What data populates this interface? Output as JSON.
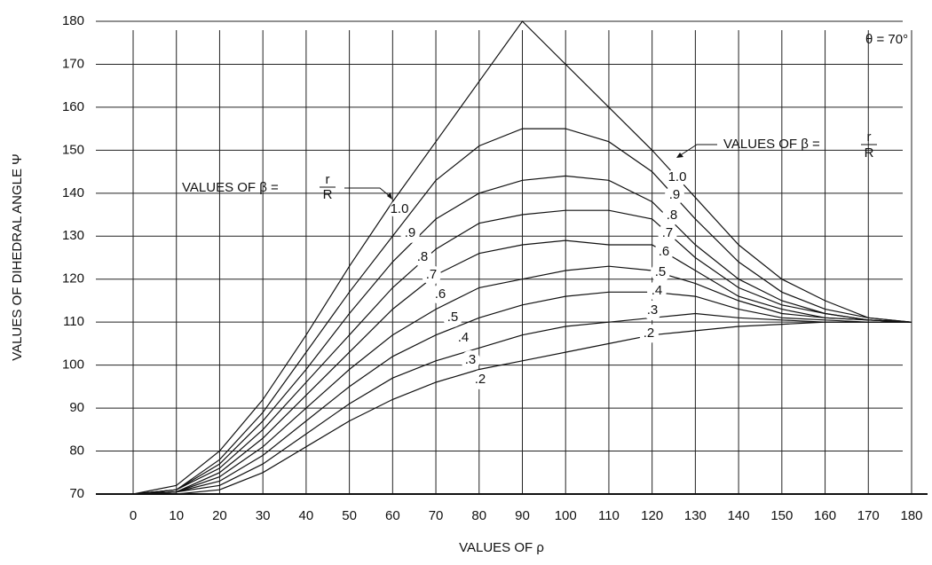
{
  "chart_data": {
    "type": "line",
    "x_label": "VALUES OF ρ",
    "y_label": "VALUES OF DIHEDRAL ANGLE Ψ",
    "annotations": [
      {
        "text": "θ = 70°"
      },
      {
        "text": "VALUES OF β =",
        "numerator": "r",
        "denominator": "R"
      },
      {
        "text": "VALUES OF β =",
        "numerator": "r",
        "denominator": "R"
      }
    ],
    "x": [
      0,
      10,
      20,
      30,
      40,
      50,
      60,
      70,
      80,
      90,
      100,
      110,
      120,
      130,
      140,
      150,
      160,
      170,
      180
    ],
    "series": [
      {
        "name": "1.0",
        "color": "#111111",
        "values": [
          70,
          72,
          80,
          92,
          107,
          123,
          138,
          152,
          166,
          180,
          170,
          160,
          150,
          139,
          128,
          120,
          115,
          111,
          110
        ]
      },
      {
        "name": ".9",
        "color": "#111111",
        "values": [
          70,
          71,
          78,
          89,
          103,
          117,
          130,
          143,
          151,
          155,
          155,
          152,
          145,
          134,
          124,
          117,
          113,
          111,
          110
        ]
      },
      {
        "name": ".8",
        "color": "#111111",
        "values": [
          70,
          71,
          77,
          87,
          99,
          112,
          124,
          134,
          140,
          143,
          144,
          143,
          138,
          128,
          120,
          115,
          112,
          110.5,
          110
        ]
      },
      {
        "name": ".7",
        "color": "#111111",
        "values": [
          70,
          71,
          76,
          85,
          96,
          107,
          118,
          127,
          133,
          135,
          136,
          136,
          134,
          125,
          118,
          114,
          112,
          110.5,
          110
        ]
      },
      {
        "name": ".6",
        "color": "#111111",
        "values": [
          70,
          70.5,
          75,
          83,
          93,
          103,
          113,
          121,
          126,
          128,
          129,
          128,
          128,
          122,
          116,
          113,
          111,
          110.5,
          110
        ]
      },
      {
        "name": ".5",
        "color": "#111111",
        "values": [
          70,
          70.5,
          74,
          81,
          90,
          99,
          107,
          113,
          118,
          120,
          122,
          123,
          122,
          119,
          115,
          112,
          111,
          110.5,
          110
        ]
      },
      {
        "name": ".4",
        "color": "#111111",
        "values": [
          70,
          70.5,
          73,
          79,
          87,
          95,
          102,
          107,
          111,
          114,
          116,
          117,
          117,
          116,
          113,
          111,
          110.5,
          110,
          110
        ]
      },
      {
        "name": ".3",
        "color": "#111111",
        "values": [
          70,
          70.5,
          72,
          77,
          84,
          91,
          97,
          101,
          104,
          107,
          109,
          110,
          111,
          112,
          111,
          110.5,
          110,
          110,
          110
        ]
      },
      {
        "name": ".2",
        "color": "#111111",
        "values": [
          70,
          70,
          71,
          75,
          81,
          87,
          92,
          96,
          99,
          101,
          103,
          105,
          107,
          108,
          109,
          109.5,
          110,
          110,
          110
        ]
      }
    ],
    "xlim": [
      0,
      180
    ],
    "xticks": [
      0,
      10,
      20,
      30,
      40,
      50,
      60,
      70,
      80,
      90,
      100,
      110,
      120,
      130,
      140,
      150,
      160,
      170,
      180
    ],
    "ylim": [
      70,
      180
    ],
    "yticks": [
      70,
      80,
      90,
      100,
      110,
      120,
      130,
      140,
      150,
      160,
      170,
      180
    ],
    "grid": true
  }
}
